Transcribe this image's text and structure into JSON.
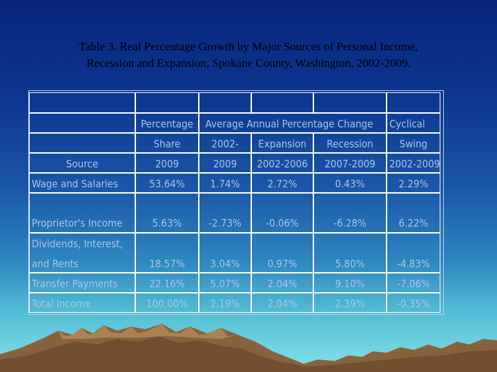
{
  "title": {
    "line1": "Table 3. Real Percentage Growth by Major Sources of Personal Income,",
    "line2": "Recession and Expansion, Spokane County, Washington, 2002-2009."
  },
  "table": {
    "header": {
      "row1": [
        "Percentage",
        "Average Annual Percentage Change",
        "Cyclical"
      ],
      "row2": [
        "Share",
        "2002-",
        "Expansion",
        "Recession",
        "Swing"
      ],
      "row3": [
        "Source",
        "2009",
        "2009",
        "2002-2006",
        "2007-2009",
        "2002-2009"
      ]
    },
    "rows": [
      {
        "source": [
          "Wage and Salaries"
        ],
        "values": [
          "53.64%",
          "1.74%",
          "2.72%",
          "0.43%",
          "2.29%"
        ]
      },
      {
        "source": [
          "Proprietor's Income"
        ],
        "values": [
          "5.63%",
          "-2.73%",
          "-0.06%",
          "-6.28%",
          "6.22%"
        ]
      },
      {
        "source": [
          "Dividends, Interest,",
          "and Rents"
        ],
        "values": [
          "18.57%",
          "3.04%",
          "0.97%",
          "5.80%",
          "-4.83%"
        ]
      },
      {
        "source": [
          "Transfer Payments"
        ],
        "values": [
          "22.16%",
          "5.07%",
          "2.04%",
          "9.10%",
          "-7.06%"
        ]
      },
      {
        "source": [
          "Total Income"
        ],
        "values": [
          "100.00%",
          "2.19%",
          "2.04%",
          "2.39%",
          "-0.35%"
        ]
      }
    ]
  }
}
